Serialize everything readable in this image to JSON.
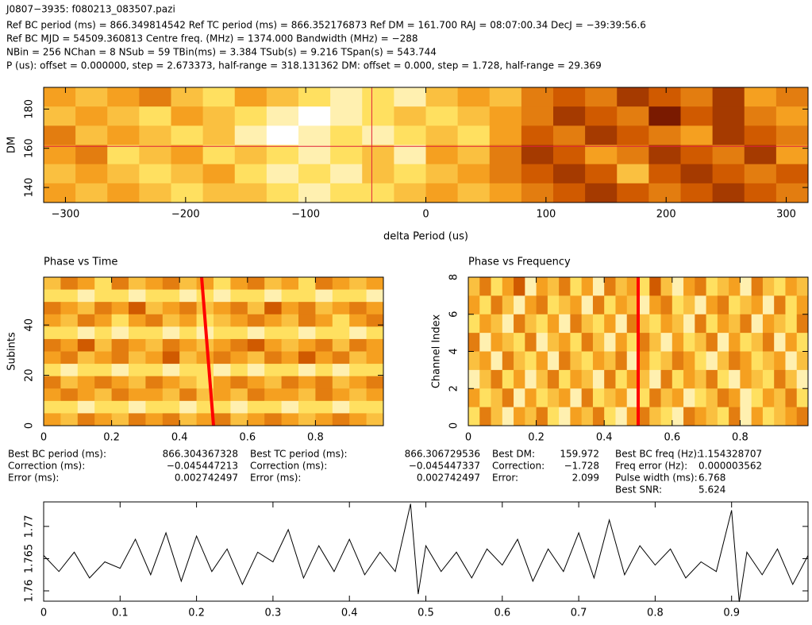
{
  "header": {
    "title": "J0807−3935: f080213_083507.pazi",
    "lines": [
      "Ref BC period (ms) = 866.349814542   Ref TC period (ms) = 866.352176873   Ref DM = 161.700   RAJ = 08:07:00.34   DecJ = −39:39:56.6",
      "Ref BC MJD = 54509.360813   Centre freq. (MHz) = 1374.000   Bandwidth (MHz) = −288",
      "NBin = 256   NChan = 8   NSub = 59   TBin(ms) = 3.384   TSub(s) = 9.216   TSpan(s) = 543.744",
      "P (us): offset = 0.000000, step = 2.673373, half-range = 318.131362      DM: offset = 0.000, step = 1.728, half-range = 29.369"
    ]
  },
  "results": [
    {
      "labels": [
        "Best BC period (ms):",
        "Correction (ms):",
        "Error (ms):"
      ],
      "values": [
        "866.304367328",
        "−0.045447213",
        "0.002742497"
      ]
    },
    {
      "labels": [
        "Best TC period (ms):",
        "Correction (ms):",
        "Error (ms):"
      ],
      "values": [
        "866.306729536",
        "−0.045447337",
        "0.002742497"
      ]
    },
    {
      "labels": [
        "Best DM:",
        "Correction:",
        "Error:"
      ],
      "values": [
        "159.972",
        "−1.728",
        "2.099"
      ]
    },
    {
      "labels": [
        "Best BC freq (Hz):",
        "Freq error (Hz):",
        "Pulse width (ms):",
        "Best SNR:"
      ],
      "values": [
        "1.154328707",
        "0.000003562",
        "6.768",
        "5.624"
      ]
    }
  ],
  "chart_data": [
    {
      "type": "heatmap",
      "xlabel": "delta Period (us)",
      "ylabel": "DM",
      "xlim": [
        -318.131362,
        318.131362
      ],
      "ylim": [
        132.331,
        191.069
      ],
      "xticks": [
        {
          "value": -300,
          "label": "−300"
        },
        {
          "value": -200,
          "label": "−200"
        },
        {
          "value": -100,
          "label": "−100"
        },
        0,
        100,
        200,
        300
      ],
      "yticks": [
        140,
        160,
        180
      ],
      "colors": [
        "#000000",
        "#7a1a00",
        "#d05a00",
        "#f5a020",
        "#ffe060",
        "#ffffff"
      ],
      "crosshair": {
        "x": -45,
        "y": 161
      },
      "crosshair_color": "#e0203a",
      "z": [
        [
          0.6,
          0.7,
          0.6,
          0.5,
          0.7,
          0.8,
          0.6,
          0.7,
          0.8,
          0.9,
          0.8,
          0.9,
          0.7,
          0.6,
          0.7,
          0.5,
          0.4,
          0.5,
          0.3,
          0.4,
          0.5,
          0.3,
          0.6,
          0.5
        ],
        [
          0.7,
          0.6,
          0.7,
          0.8,
          0.6,
          0.7,
          0.8,
          0.9,
          1.0,
          0.9,
          0.8,
          0.7,
          0.8,
          0.7,
          0.6,
          0.5,
          0.3,
          0.4,
          0.5,
          0.2,
          0.4,
          0.3,
          0.5,
          0.6
        ],
        [
          0.5,
          0.7,
          0.6,
          0.7,
          0.8,
          0.7,
          0.9,
          1.0,
          0.9,
          0.8,
          0.9,
          0.8,
          0.7,
          0.8,
          0.6,
          0.4,
          0.5,
          0.3,
          0.4,
          0.5,
          0.6,
          0.3,
          0.4,
          0.5
        ],
        [
          0.6,
          0.5,
          0.8,
          0.7,
          0.6,
          0.8,
          0.7,
          0.8,
          0.9,
          0.8,
          0.7,
          0.9,
          0.6,
          0.7,
          0.5,
          0.3,
          0.4,
          0.6,
          0.5,
          0.3,
          0.4,
          0.5,
          0.3,
          0.6
        ],
        [
          0.7,
          0.6,
          0.7,
          0.8,
          0.7,
          0.6,
          0.8,
          0.9,
          0.8,
          0.9,
          0.7,
          0.8,
          0.7,
          0.6,
          0.5,
          0.4,
          0.3,
          0.4,
          0.7,
          0.4,
          0.3,
          0.4,
          0.5,
          0.4
        ],
        [
          0.6,
          0.7,
          0.6,
          0.7,
          0.8,
          0.7,
          0.7,
          0.8,
          0.9,
          0.8,
          0.8,
          0.7,
          0.6,
          0.7,
          0.6,
          0.5,
          0.4,
          0.3,
          0.4,
          0.5,
          0.4,
          0.3,
          0.4,
          0.5
        ]
      ]
    },
    {
      "type": "heatmap",
      "title": "Phase vs Time",
      "ylabel": "Subints",
      "xlim": [
        0,
        1
      ],
      "ylim": [
        0,
        59
      ],
      "xticks": [
        0,
        0.2,
        0.4,
        0.6,
        0.8
      ],
      "yticks": [
        0,
        20,
        40
      ],
      "colors": [
        "#000000",
        "#7a1a00",
        "#d05a00",
        "#f5a020",
        "#ffe060",
        "#ffffff"
      ],
      "line": {
        "x": [
          0.5,
          0.465
        ],
        "y": [
          0,
          59
        ]
      },
      "line_color": "#ff0000",
      "z": [
        [
          0.7,
          0.5,
          0.6,
          0.8,
          0.5,
          0.7,
          0.6,
          0.5,
          0.7,
          0.6,
          0.8,
          0.6,
          0.5,
          0.7,
          0.6,
          0.8,
          0.5,
          0.6,
          0.7,
          0.6
        ],
        [
          0.8,
          0.8,
          0.9,
          0.8,
          0.8,
          0.9,
          0.8,
          0.8,
          0.9,
          0.8,
          0.9,
          0.8,
          0.8,
          0.9,
          0.8,
          0.8,
          0.9,
          0.8,
          0.8,
          0.9
        ],
        [
          0.5,
          0.6,
          0.7,
          0.5,
          0.6,
          0.4,
          0.7,
          0.6,
          0.5,
          0.7,
          0.6,
          0.5,
          0.7,
          0.4,
          0.6,
          0.5,
          0.7,
          0.6,
          0.5,
          0.6
        ],
        [
          0.6,
          0.7,
          0.5,
          0.6,
          0.8,
          0.6,
          0.5,
          0.7,
          0.6,
          0.8,
          0.7,
          0.6,
          0.5,
          0.6,
          0.7,
          0.5,
          0.6,
          0.8,
          0.6,
          0.5
        ],
        [
          0.8,
          0.8,
          0.9,
          0.8,
          0.9,
          0.8,
          0.8,
          0.9,
          0.8,
          0.9,
          0.8,
          0.8,
          0.9,
          0.8,
          0.8,
          0.9,
          0.8,
          0.8,
          0.9,
          0.8
        ],
        [
          0.5,
          0.6,
          0.4,
          0.7,
          0.5,
          0.6,
          0.7,
          0.5,
          0.6,
          0.7,
          0.6,
          0.5,
          0.4,
          0.6,
          0.7,
          0.6,
          0.5,
          0.7,
          0.5,
          0.6
        ],
        [
          0.6,
          0.5,
          0.7,
          0.6,
          0.5,
          0.7,
          0.6,
          0.4,
          0.7,
          0.6,
          0.5,
          0.6,
          0.7,
          0.5,
          0.6,
          0.4,
          0.6,
          0.5,
          0.7,
          0.6
        ],
        [
          0.8,
          0.9,
          0.8,
          0.8,
          0.9,
          0.8,
          0.8,
          0.9,
          0.8,
          0.8,
          0.9,
          0.8,
          0.9,
          0.8,
          0.8,
          0.9,
          0.8,
          0.9,
          0.8,
          0.8
        ],
        [
          0.5,
          0.7,
          0.6,
          0.5,
          0.6,
          0.7,
          0.5,
          0.6,
          0.7,
          0.8,
          0.6,
          0.5,
          0.6,
          0.7,
          0.5,
          0.6,
          0.5,
          0.7,
          0.6,
          0.5
        ],
        [
          0.6,
          0.5,
          0.6,
          0.7,
          0.5,
          0.6,
          0.6,
          0.7,
          0.5,
          0.7,
          0.6,
          0.7,
          0.5,
          0.6,
          0.6,
          0.7,
          0.5,
          0.6,
          0.7,
          0.6
        ],
        [
          0.8,
          0.8,
          0.9,
          0.8,
          0.8,
          0.9,
          0.8,
          0.8,
          0.9,
          0.8,
          0.8,
          0.9,
          0.8,
          0.8,
          0.9,
          0.8,
          0.8,
          0.9,
          0.8,
          0.8
        ],
        [
          0.6,
          0.7,
          0.5,
          0.6,
          0.7,
          0.5,
          0.6,
          0.5,
          0.7,
          0.6,
          0.5,
          0.7,
          0.6,
          0.5,
          0.6,
          0.7,
          0.6,
          0.5,
          0.6,
          0.7
        ]
      ]
    },
    {
      "type": "heatmap",
      "title": "Phase vs Frequency",
      "ylabel": "Channel Index",
      "xlim": [
        0,
        1
      ],
      "ylim": [
        0,
        8
      ],
      "xticks": [
        0,
        0.2,
        0.4,
        0.6,
        0.8
      ],
      "yticks": [
        0,
        2,
        4,
        6,
        8
      ],
      "colors": [
        "#000000",
        "#7a1a00",
        "#d05a00",
        "#f5a020",
        "#ffe060",
        "#ffffff"
      ],
      "line": {
        "x": [
          0.5,
          0.5
        ],
        "y": [
          0,
          8
        ]
      },
      "line_color": "#ff0000",
      "z": [
        [
          0.7,
          0.5,
          0.8,
          0.6,
          0.4,
          0.9,
          0.6,
          0.7,
          0.5,
          0.8,
          0.6,
          0.9,
          0.5,
          0.7,
          0.6,
          0.8,
          0.4,
          0.7,
          0.9,
          0.6,
          0.5,
          0.8,
          0.7,
          0.6,
          0.9,
          0.5,
          0.7,
          0.8,
          0.6,
          0.7
        ],
        [
          0.6,
          0.8,
          0.5,
          0.7,
          0.9,
          0.6,
          0.5,
          0.8,
          0.7,
          0.6,
          0.9,
          0.5,
          0.8,
          0.6,
          0.7,
          0.9,
          0.6,
          0.5,
          0.8,
          0.7,
          0.9,
          0.6,
          0.5,
          0.8,
          0.7,
          0.6,
          0.9,
          0.5,
          0.8,
          0.6
        ],
        [
          0.8,
          0.6,
          0.7,
          0.9,
          0.5,
          0.7,
          0.8,
          0.6,
          0.9,
          0.5,
          0.7,
          0.8,
          0.6,
          0.9,
          0.5,
          0.7,
          0.8,
          0.6,
          0.7,
          0.9,
          0.5,
          0.8,
          0.6,
          0.7,
          0.5,
          0.9,
          0.6,
          0.7,
          0.8,
          0.5
        ],
        [
          0.5,
          0.9,
          0.6,
          0.7,
          0.8,
          0.5,
          0.9,
          0.7,
          0.6,
          0.8,
          0.5,
          0.7,
          0.9,
          0.6,
          0.8,
          0.5,
          0.7,
          0.9,
          0.6,
          0.8,
          0.7,
          0.5,
          0.9,
          0.6,
          0.8,
          0.7,
          0.5,
          0.9,
          0.6,
          0.8
        ],
        [
          0.7,
          0.6,
          0.9,
          0.5,
          0.7,
          0.8,
          0.6,
          0.9,
          0.5,
          0.7,
          0.8,
          0.6,
          0.7,
          0.5,
          0.9,
          0.6,
          0.8,
          0.7,
          0.5,
          0.6,
          0.8,
          0.9,
          0.7,
          0.5,
          0.6,
          0.8,
          0.7,
          0.6,
          0.9,
          0.7
        ],
        [
          0.9,
          0.7,
          0.5,
          0.8,
          0.6,
          0.9,
          0.7,
          0.5,
          0.8,
          0.6,
          0.7,
          0.9,
          0.5,
          0.8,
          0.6,
          0.7,
          0.9,
          0.5,
          0.8,
          0.6,
          0.7,
          0.5,
          0.8,
          0.9,
          0.6,
          0.7,
          0.8,
          0.5,
          0.7,
          0.9
        ],
        [
          0.6,
          0.8,
          0.7,
          0.5,
          0.9,
          0.6,
          0.8,
          0.7,
          0.6,
          0.9,
          0.5,
          0.8,
          0.7,
          0.6,
          0.9,
          0.8,
          0.5,
          0.7,
          0.6,
          0.9,
          0.8,
          0.7,
          0.5,
          0.6,
          0.9,
          0.8,
          0.6,
          0.7,
          0.5,
          0.8
        ],
        [
          0.8,
          0.5,
          0.7,
          0.9,
          0.6,
          0.7,
          0.5,
          0.8,
          0.9,
          0.6,
          0.7,
          0.5,
          0.8,
          0.9,
          0.6,
          0.5,
          0.7,
          0.8,
          0.9,
          0.5,
          0.6,
          0.7,
          0.8,
          0.5,
          0.9,
          0.6,
          0.8,
          0.7,
          0.6,
          0.5
        ]
      ]
    },
    {
      "type": "line",
      "xlim": [
        0,
        1
      ],
      "ylim": [
        1.7584,
        1.7738
      ],
      "xticks": [
        0,
        0.1,
        0.2,
        0.3,
        0.4,
        0.5,
        0.6,
        0.7,
        0.8,
        0.9
      ],
      "yticks": [
        1.76,
        1.765,
        1.77
      ],
      "color": "#000000",
      "x": [
        0,
        0.02,
        0.04,
        0.06,
        0.08,
        0.1,
        0.12,
        0.14,
        0.16,
        0.18,
        0.2,
        0.22,
        0.24,
        0.26,
        0.28,
        0.3,
        0.32,
        0.34,
        0.36,
        0.38,
        0.4,
        0.42,
        0.44,
        0.46,
        0.48,
        0.49,
        0.5,
        0.52,
        0.54,
        0.56,
        0.58,
        0.6,
        0.62,
        0.64,
        0.66,
        0.68,
        0.7,
        0.72,
        0.74,
        0.76,
        0.78,
        0.8,
        0.82,
        0.84,
        0.86,
        0.88,
        0.9,
        0.91,
        0.92,
        0.94,
        0.96,
        0.98,
        1.0
      ],
      "values": [
        1.7655,
        1.763,
        1.766,
        1.762,
        1.7645,
        1.7635,
        1.768,
        1.7625,
        1.769,
        1.7615,
        1.7685,
        1.763,
        1.7665,
        1.761,
        1.766,
        1.7645,
        1.7695,
        1.762,
        1.767,
        1.763,
        1.768,
        1.7625,
        1.766,
        1.763,
        1.7735,
        1.7595,
        1.767,
        1.763,
        1.766,
        1.762,
        1.7665,
        1.764,
        1.768,
        1.7615,
        1.7665,
        1.763,
        1.769,
        1.762,
        1.771,
        1.7625,
        1.767,
        1.764,
        1.7665,
        1.762,
        1.7645,
        1.763,
        1.7725,
        1.7583,
        1.766,
        1.7625,
        1.7665,
        1.761,
        1.7655
      ]
    }
  ]
}
